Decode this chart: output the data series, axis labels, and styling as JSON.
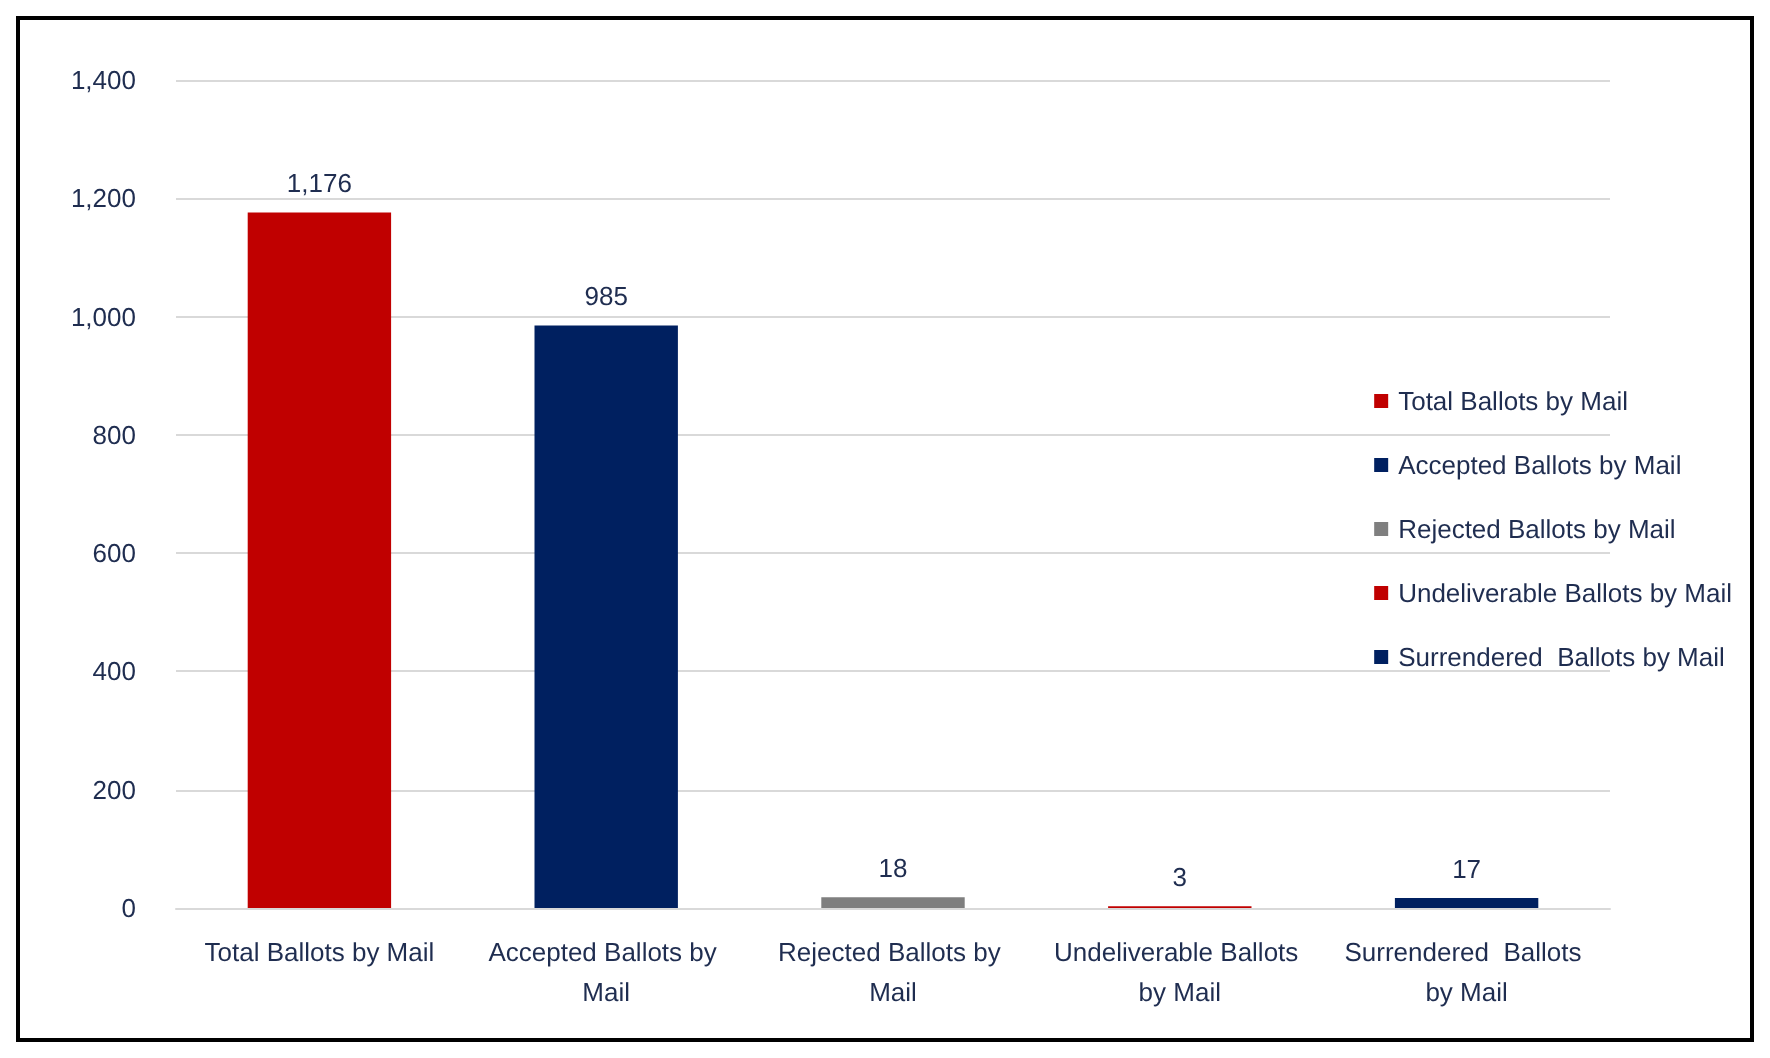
{
  "chart_data": {
    "type": "bar",
    "categories": [
      "Total Ballots by Mail",
      "Accepted Ballots by Mail",
      "Rejected Ballots by Mail",
      "Undeliverable Ballots by Mail",
      "Surrendered  Ballots by Mail"
    ],
    "series": [
      {
        "name": "Total Ballots by Mail",
        "color": "#c00000",
        "values": [
          1176,
          null,
          null,
          null,
          null
        ],
        "value_labels": [
          "1,176",
          null,
          null,
          null,
          null
        ]
      },
      {
        "name": "Accepted Ballots by Mail",
        "color": "#002060",
        "values": [
          null,
          985,
          null,
          null,
          null
        ],
        "value_labels": [
          null,
          "985",
          null,
          null,
          null
        ]
      },
      {
        "name": "Rejected Ballots by Mail",
        "color": "#7f7f7f",
        "values": [
          null,
          null,
          18,
          null,
          null
        ],
        "value_labels": [
          null,
          null,
          "18",
          null,
          null
        ]
      },
      {
        "name": "Undeliverable Ballots by Mail",
        "color": "#c00000",
        "values": [
          null,
          null,
          null,
          3,
          null
        ],
        "value_labels": [
          null,
          null,
          null,
          "3",
          null
        ]
      },
      {
        "name": "Surrendered  Ballots by Mail",
        "color": "#002060",
        "values": [
          null,
          null,
          null,
          null,
          17
        ],
        "value_labels": [
          null,
          null,
          null,
          null,
          "17"
        ]
      }
    ],
    "stacked": true,
    "ylim": [
      0,
      1400
    ],
    "yticks": [
      0,
      200,
      400,
      600,
      800,
      {
        "value": 1000,
        "label": "1,000"
      },
      {
        "value": 1200,
        "label": "1,200"
      },
      {
        "value": 1400,
        "label": "1,400"
      }
    ],
    "grid": "y",
    "legend": "right"
  }
}
